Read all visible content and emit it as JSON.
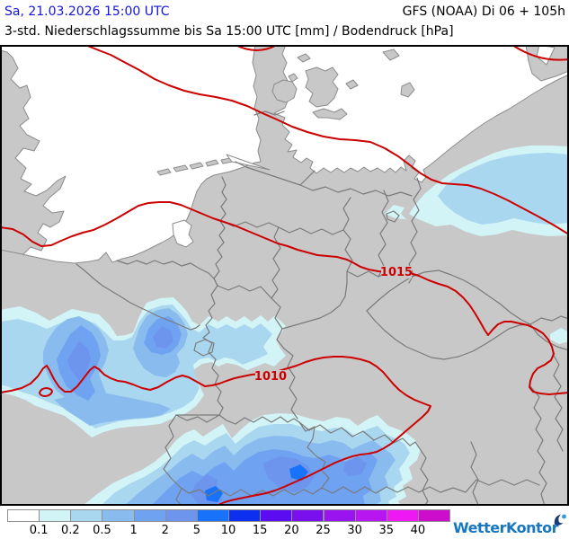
{
  "header": {
    "valid_datetime": "Sa, 21.03.2026 15:00 UTC",
    "model": "GFS (NOAA) Di 06 + 105h",
    "title": "3-std. Niederschlagssumme bis Sa 15:00 UTC [mm] / Bodendruck [hPa]"
  },
  "map": {
    "isobar_labels": [
      {
        "text": "1015"
      },
      {
        "text": "1010"
      }
    ],
    "colors": {
      "sea": "#ffffff",
      "land": "#c8c8c8",
      "coast": "#8c8c8c",
      "border": "#7a7a7a",
      "isobar": "#cc0000",
      "frame": "#000000",
      "hblue": "#1414dd"
    }
  },
  "legend": {
    "unit_values": [
      "0.1",
      "0.2",
      "0.5",
      "1",
      "2",
      "5",
      "10",
      "15",
      "20",
      "25",
      "30",
      "35",
      "40"
    ],
    "colors": [
      "#ffffff",
      "#d2f4f6",
      "#aad7f0",
      "#8abbee",
      "#70a2f2",
      "#6e95ee",
      "#1873fa",
      "#0c2ff0",
      "#5c0cf0",
      "#7a10ee",
      "#9a14f0",
      "#b816f0",
      "#ee18f5",
      "#cc0ecc"
    ]
  },
  "branding": {
    "logo_text": "WetterKontor"
  }
}
